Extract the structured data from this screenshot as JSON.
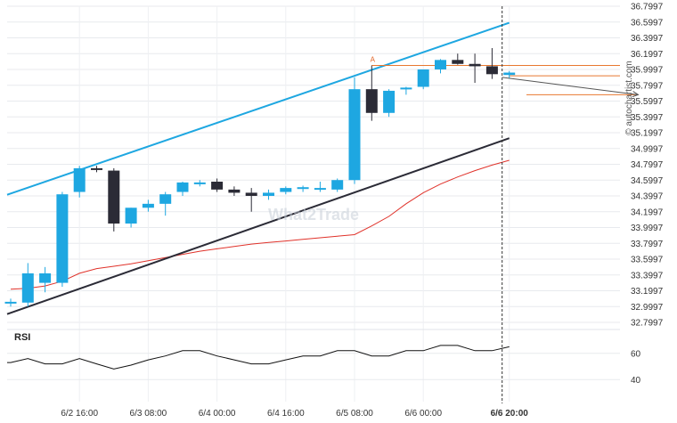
{
  "chart_data": [
    {
      "type": "candlestick",
      "ylim": [
        32.7997,
        36.7997
      ],
      "y_ticks": [
        "36.7997",
        "36.5997",
        "36.3997",
        "36.1997",
        "35.9997",
        "35.7997",
        "35.5997",
        "35.3997",
        "35.1997",
        "34.9997",
        "34.7997",
        "34.5997",
        "34.3997",
        "34.1997",
        "33.9997",
        "33.7997",
        "33.5997",
        "33.3997",
        "33.1997",
        "32.9997",
        "32.7997"
      ],
      "x_ticks": [
        "6/2 16:00",
        "6/3 08:00",
        "6/4 00:00",
        "6/4 16:00",
        "6/5 08:00",
        "6/6 00:00",
        "6/6 20:00"
      ],
      "x_tick_index": [
        4,
        8,
        12,
        16,
        20,
        24,
        29
      ],
      "current_time_label": "6/6 20:00",
      "candles": [
        {
          "o": 33.05,
          "h": 33.1,
          "l": 33.0,
          "c": 33.06
        },
        {
          "o": 33.05,
          "h": 33.55,
          "l": 33.0,
          "c": 33.42
        },
        {
          "o": 33.3,
          "h": 33.5,
          "l": 33.18,
          "c": 33.42
        },
        {
          "o": 33.3,
          "h": 34.45,
          "l": 33.25,
          "c": 34.42
        },
        {
          "o": 34.45,
          "h": 34.78,
          "l": 34.38,
          "c": 34.75
        },
        {
          "o": 34.75,
          "h": 34.78,
          "l": 34.7,
          "c": 34.73
        },
        {
          "o": 34.72,
          "h": 34.75,
          "l": 33.95,
          "c": 34.05
        },
        {
          "o": 34.05,
          "h": 34.25,
          "l": 34.0,
          "c": 34.25
        },
        {
          "o": 34.25,
          "h": 34.35,
          "l": 34.2,
          "c": 34.3
        },
        {
          "o": 34.3,
          "h": 34.45,
          "l": 34.15,
          "c": 34.42
        },
        {
          "o": 34.45,
          "h": 34.58,
          "l": 34.4,
          "c": 34.57
        },
        {
          "o": 34.57,
          "h": 34.6,
          "l": 34.52,
          "c": 34.57
        },
        {
          "o": 34.58,
          "h": 34.62,
          "l": 34.45,
          "c": 34.48
        },
        {
          "o": 34.48,
          "h": 34.52,
          "l": 34.4,
          "c": 34.44
        },
        {
          "o": 34.44,
          "h": 34.5,
          "l": 34.2,
          "c": 34.4
        },
        {
          "o": 34.4,
          "h": 34.48,
          "l": 34.35,
          "c": 34.44
        },
        {
          "o": 34.45,
          "h": 34.52,
          "l": 34.42,
          "c": 34.5
        },
        {
          "o": 34.5,
          "h": 34.53,
          "l": 34.45,
          "c": 34.51
        },
        {
          "o": 34.48,
          "h": 34.58,
          "l": 34.45,
          "c": 34.5
        },
        {
          "o": 34.48,
          "h": 34.62,
          "l": 34.45,
          "c": 34.6
        },
        {
          "o": 34.6,
          "h": 35.9,
          "l": 34.55,
          "c": 35.75
        },
        {
          "o": 35.75,
          "h": 36.05,
          "l": 35.35,
          "c": 35.45
        },
        {
          "o": 35.45,
          "h": 35.75,
          "l": 35.4,
          "c": 35.73
        },
        {
          "o": 35.75,
          "h": 35.78,
          "l": 35.68,
          "c": 35.77
        },
        {
          "o": 35.78,
          "h": 36.0,
          "l": 35.75,
          "c": 36.0
        },
        {
          "o": 36.0,
          "h": 36.13,
          "l": 35.95,
          "c": 36.12
        },
        {
          "o": 36.12,
          "h": 36.2,
          "l": 36.06,
          "c": 36.07
        },
        {
          "o": 36.07,
          "h": 36.2,
          "l": 35.83,
          "c": 36.04
        },
        {
          "o": 36.04,
          "h": 36.27,
          "l": 35.88,
          "c": 35.94
        },
        {
          "o": 35.93,
          "h": 35.98,
          "l": 35.89,
          "c": 35.96
        }
      ],
      "moving_average": [
        33.22,
        33.23,
        33.26,
        33.32,
        33.42,
        33.48,
        33.51,
        33.54,
        33.58,
        33.62,
        33.66,
        33.7,
        33.73,
        33.76,
        33.79,
        33.81,
        33.83,
        33.85,
        33.87,
        33.89,
        33.91,
        34.02,
        34.14,
        34.3,
        34.44,
        34.55,
        34.64,
        34.72,
        34.79,
        34.85
      ],
      "channel_upper": {
        "i1": 0,
        "v1": 34.43,
        "i2": 29,
        "v2": 36.59
      },
      "channel_lower": {
        "i1": 0,
        "v1": 32.92,
        "i2": 29,
        "v2": 35.13
      },
      "pattern_point_label": "A",
      "pattern_point_index": 21,
      "level_lines": [
        36.05,
        35.92
      ],
      "projection": {
        "start_index": 29,
        "start_value": 35.9,
        "end_index": 36.5,
        "end_value": 35.68,
        "level": 35.68
      },
      "colors": {
        "bull": "#1ea7e1",
        "bear": "#2b2b36",
        "channel_upper": "#1ea7e1",
        "channel_lower": "#2b2b36",
        "ma": "#e0322a",
        "level": "#e87830",
        "projection": "#555555"
      }
    },
    {
      "type": "line",
      "title": "RSI",
      "ylim": [
        30,
        70
      ],
      "y_ticks": [
        "60",
        "40"
      ],
      "values": [
        53,
        56,
        52,
        52,
        56,
        52,
        48,
        51,
        55,
        58,
        62,
        62,
        58,
        55,
        52,
        52,
        55,
        58,
        58,
        62,
        62,
        58,
        58,
        62,
        62,
        66,
        66,
        62,
        62,
        65
      ]
    }
  ],
  "watermark": {
    "side_text": "© autochartist.com",
    "brand_text": "What2Trade"
  }
}
